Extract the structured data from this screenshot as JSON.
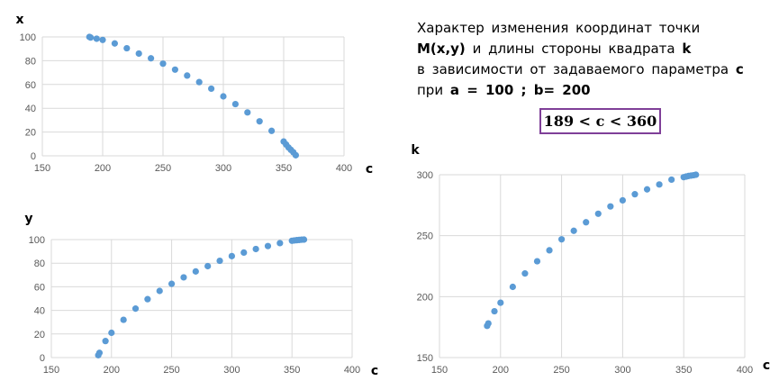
{
  "caption": {
    "line1": "Характер  изменения  координат  точки",
    "line2_bold1": "M(x,y)",
    "line2_text": " и  длины  стороны  квадрата ",
    "line2_bold2": "k",
    "line3_text": "в зависимости от задаваемого параметра ",
    "line3_bold": "c",
    "line4_text": "при  ",
    "line4_bold": "a = 100  ;   b= 200"
  },
  "range_label": "189  < c < 360",
  "colors": {
    "marker": "#5b9bd5",
    "grid": "#d9d9d9",
    "box_border": "#7f3f98"
  },
  "chart_data": [
    {
      "type": "scatter",
      "title": "",
      "xlabel": "c",
      "ylabel": "x",
      "xlim": [
        150,
        400
      ],
      "ylim": [
        0,
        100
      ],
      "x_ticks": [
        "150",
        "200",
        "250",
        "300",
        "350",
        "400"
      ],
      "y_ticks": [
        "0",
        "20",
        "40",
        "60",
        "80",
        "100"
      ],
      "grid": true,
      "series": [
        {
          "x": [
            189,
            190,
            195,
            200,
            210,
            220,
            230,
            240,
            250,
            260,
            270,
            280,
            290,
            300,
            310,
            320,
            330,
            340,
            350,
            352,
            354,
            356,
            358,
            360
          ],
          "y": [
            100,
            99.5,
            98.5,
            97.5,
            94.5,
            90.5,
            86,
            82,
            77.5,
            72.5,
            67.5,
            62,
            56.5,
            50,
            43.5,
            36.5,
            29,
            21,
            12,
            9.5,
            7,
            5,
            3,
            0.5
          ]
        }
      ]
    },
    {
      "type": "scatter",
      "title": "",
      "xlabel": "c",
      "ylabel": "y",
      "xlim": [
        150,
        400
      ],
      "ylim": [
        0,
        100
      ],
      "x_ticks": [
        "150",
        "200",
        "250",
        "300",
        "350",
        "400"
      ],
      "y_ticks": [
        "0",
        "20",
        "40",
        "60",
        "80",
        "100"
      ],
      "grid": true,
      "series": [
        {
          "x": [
            189,
            190,
            195,
            200,
            210,
            220,
            230,
            240,
            250,
            260,
            270,
            280,
            290,
            300,
            310,
            320,
            330,
            340,
            350,
            352,
            354,
            356,
            358,
            360
          ],
          "y": [
            2,
            4,
            14,
            21,
            32,
            41.5,
            49.5,
            56.5,
            62.5,
            68,
            73,
            77.5,
            82,
            86,
            89,
            92,
            94.5,
            97,
            99,
            99.3,
            99.5,
            99.7,
            99.9,
            100
          ]
        }
      ]
    },
    {
      "type": "scatter",
      "title": "",
      "xlabel": "c",
      "ylabel": "k",
      "xlim": [
        150,
        400
      ],
      "ylim": [
        150,
        300
      ],
      "x_ticks": [
        "150",
        "200",
        "250",
        "300",
        "350",
        "400"
      ],
      "y_ticks": [
        "150",
        "200",
        "250",
        "300"
      ],
      "grid": true,
      "series": [
        {
          "x": [
            189,
            190,
            195,
            200,
            210,
            220,
            230,
            240,
            250,
            260,
            270,
            280,
            290,
            300,
            310,
            320,
            330,
            340,
            350,
            352,
            354,
            356,
            358,
            360
          ],
          "y": [
            176,
            178,
            188,
            195,
            208,
            219,
            229,
            238,
            247,
            254,
            261,
            268,
            274,
            279,
            284,
            288,
            292,
            296,
            298,
            298.5,
            299,
            299.3,
            299.6,
            300
          ]
        }
      ]
    }
  ]
}
